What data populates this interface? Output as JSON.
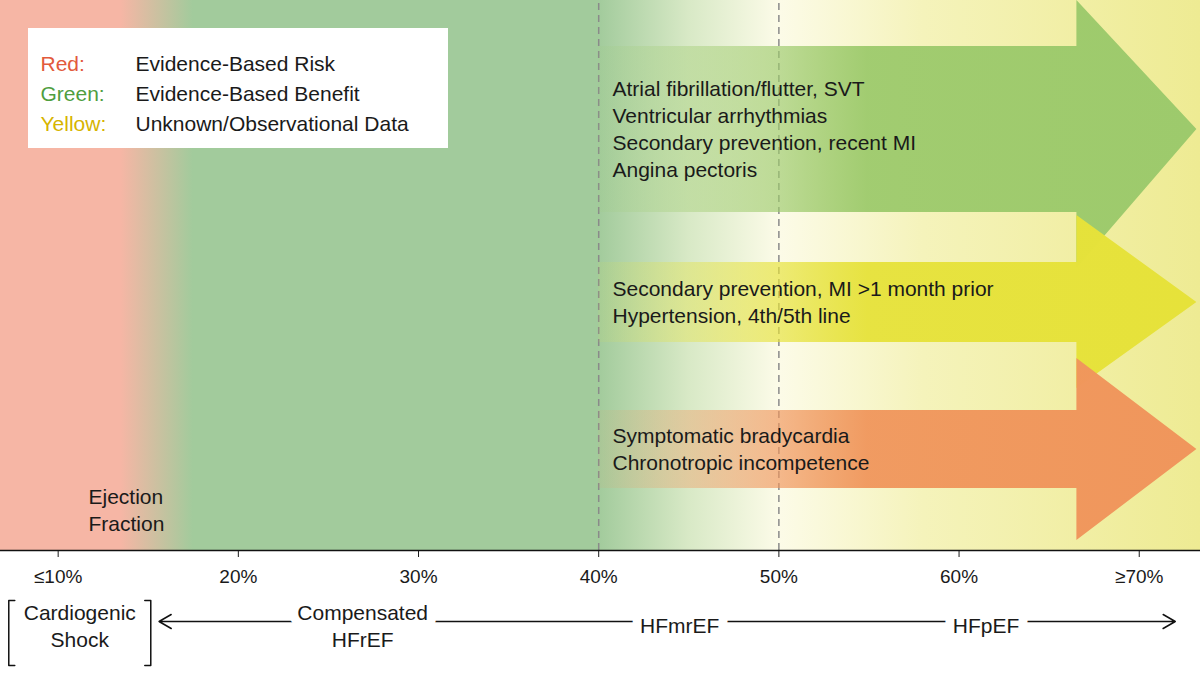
{
  "chart_data": {
    "type": "ranges",
    "xlabel": "Ejection Fraction",
    "xlim": [
      6.8,
      73.4
    ],
    "xticks": [
      {
        "value": 10,
        "label": "≤10%"
      },
      {
        "value": 20,
        "label": "20%"
      },
      {
        "value": 30,
        "label": "30%"
      },
      {
        "value": 40,
        "label": "40%"
      },
      {
        "value": 50,
        "label": "50%"
      },
      {
        "value": 60,
        "label": "60%"
      },
      {
        "value": 70,
        "label": "≥70%"
      }
    ],
    "reference_lines": [
      40,
      50
    ],
    "legend": "top-left",
    "series": [
      {
        "name": "Evidence-Based Risk",
        "label": "Red:",
        "color": "#e25a3c"
      },
      {
        "name": "Evidence-Based Benefit",
        "label": "Green:",
        "color": "#4f9e3f"
      },
      {
        "name": "Unknown/Observational Data",
        "label": "Yellow:",
        "color": "#d6b400"
      }
    ],
    "background": [
      {
        "x": 6.8,
        "color": "#f6b6a5"
      },
      {
        "x": 13.5,
        "color": "#f6b6a5"
      },
      {
        "x": 17.5,
        "color": "#a2cb9c"
      },
      {
        "x": 40,
        "color": "#a2cb9c"
      },
      {
        "x": 45,
        "color": "#d8e9c6"
      },
      {
        "x": 50,
        "color": "#fcfbe8"
      },
      {
        "x": 58,
        "color": "#f5f3bb"
      },
      {
        "x": 73.4,
        "color": "#eeeb93"
      }
    ],
    "arrows": [
      {
        "from": 40,
        "to": 73.2,
        "color": "#9dca6c",
        "labels": [
          "Atrial fibrillation/flutter, SVT",
          "Ventricular arrhythmias",
          "Secondary prevention, recent MI",
          "Angina pectoris"
        ]
      },
      {
        "from": 40,
        "to": 73.2,
        "color": "#e6e23a",
        "labels": [
          "Secondary prevention, MI >1 month prior",
          "Hypertension, 4th/5th line"
        ]
      },
      {
        "from": 40,
        "to": 73.2,
        "color": "#f0965c",
        "labels": [
          "Symptomatic bradycardia",
          "Chronotropic incompetence"
        ]
      }
    ],
    "ranges": [
      {
        "label": "Cardiogenic Shock",
        "center": 11.2,
        "bracket": true
      },
      {
        "label": "Compensated HFrEF",
        "center": 26.9
      },
      {
        "label": "HFmrEF",
        "center": 44.5
      },
      {
        "label": "HFpEF",
        "center": 61.5
      }
    ],
    "span": [
      15.6,
      72.0
    ]
  }
}
